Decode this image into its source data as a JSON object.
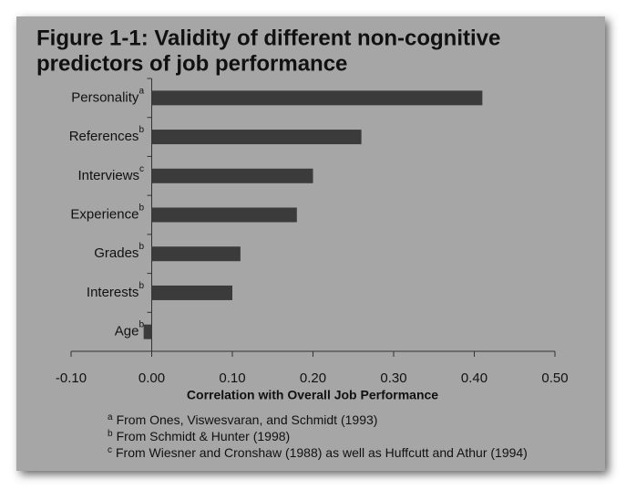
{
  "chart_data": {
    "type": "bar",
    "orientation": "horizontal",
    "title": [
      "Figure 1-1: Validity of different non-cognitive",
      "predictors of job performance"
    ],
    "categories": [
      "Personality",
      "References",
      "Interviews",
      "Experience",
      "Grades",
      "Interests",
      "Age"
    ],
    "category_markers": [
      "a",
      "b",
      "c",
      "b",
      "b",
      "b",
      "b"
    ],
    "values": [
      0.41,
      0.26,
      0.2,
      0.18,
      0.11,
      0.1,
      -0.01
    ],
    "color": "#3b3b3b",
    "xlabel": "Correlation with Overall Job Performance",
    "xlim": [
      -0.1,
      0.5
    ],
    "xticks": [
      {
        "value": -0.1,
        "label": "-0.10"
      },
      {
        "value": 0,
        "label": "0.00"
      },
      {
        "value": 0.1,
        "label": "0.10"
      },
      {
        "value": 0.2,
        "label": "0.20"
      },
      {
        "value": 0.3,
        "label": "0.30"
      },
      {
        "value": 0.4,
        "label": "0.40"
      },
      {
        "value": 0.5,
        "label": "0.50"
      }
    ],
    "grid": false,
    "footnotes": [
      {
        "marker": "a",
        "text": "From Ones, Viswesvaran, and Schmidt (1993)"
      },
      {
        "marker": "b",
        "text": "From Schmidt & Hunter (1998)"
      },
      {
        "marker": "c",
        "text": "From Wiesner and Cronshaw (1988) as well as Huffcutt and Athur (1994)"
      }
    ]
  }
}
